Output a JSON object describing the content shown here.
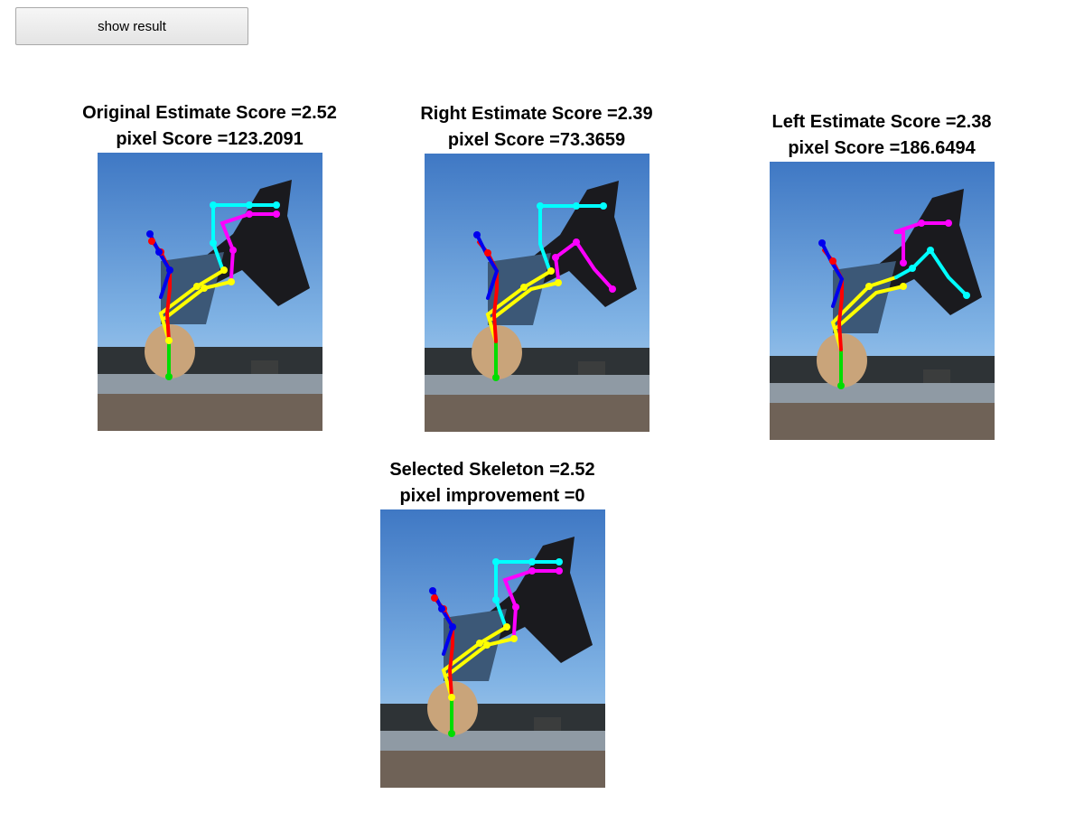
{
  "toolbar": {
    "show_result_label": "show result"
  },
  "panels": [
    {
      "id": "original",
      "line1": "Original Estimate Score =2.52",
      "line2": "pixel Score =123.2091"
    },
    {
      "id": "right",
      "line1": "Right Estimate Score =2.39",
      "line2": "pixel Score =73.3659"
    },
    {
      "id": "left",
      "line1": "Left Estimate Score =2.38",
      "line2": "pixel Score =186.6494"
    },
    {
      "id": "selected",
      "line1": "Selected Skeleton =2.52",
      "line2": "pixel improvement =0"
    }
  ],
  "skeleton_colors": {
    "head": "#00dd00",
    "torso_arm_left": "#ffff00",
    "arm_red": "#ff0000",
    "arm_blue": "#0000ee",
    "leg_cyan": "#00ffff",
    "leg_magenta": "#ff00ff"
  }
}
